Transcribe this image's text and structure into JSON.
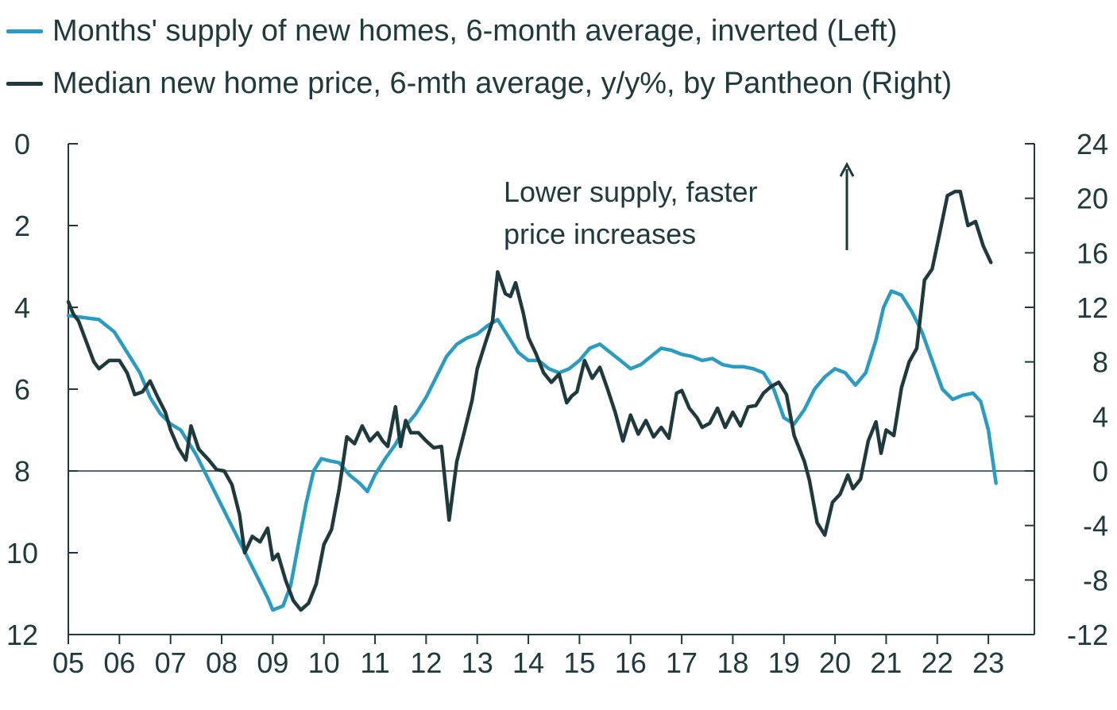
{
  "colors": {
    "supply": "#2b9cc1",
    "price": "#1f3a3d",
    "axis": "#1f3a3d"
  },
  "chart_data": {
    "type": "line",
    "title": "",
    "legend_position": "top-left",
    "annotation": {
      "lines": [
        "Lower supply, faster",
        "price increases"
      ],
      "arrow": "up"
    },
    "x_axis": {
      "ticks": [
        2005,
        2006,
        2007,
        2008,
        2009,
        2010,
        2011,
        2012,
        2013,
        2014,
        2015,
        2016,
        2017,
        2018,
        2019,
        2020,
        2021,
        2022,
        2023
      ],
      "tick_labels": [
        "05",
        "06",
        "07",
        "08",
        "09",
        "10",
        "11",
        "12",
        "13",
        "14",
        "15",
        "16",
        "17",
        "18",
        "19",
        "20",
        "21",
        "22",
        "23"
      ],
      "range": [
        2005,
        2023.9
      ]
    },
    "y_left": {
      "range": [
        0,
        12
      ],
      "inverted": true,
      "ticks": [
        0,
        2,
        4,
        6,
        8,
        10,
        12
      ],
      "tick_labels": [
        "0",
        "2",
        "4",
        "6",
        "8",
        "10",
        "12"
      ]
    },
    "y_right": {
      "range": [
        -12,
        24
      ],
      "ticks": [
        24,
        20,
        16,
        12,
        8,
        4,
        0,
        -4,
        -8,
        -12
      ],
      "tick_labels": [
        "24",
        "20",
        "16",
        "12",
        "8",
        "4",
        "0",
        "-4",
        "-8",
        "-12"
      ]
    },
    "reference_line": {
      "axis": "left",
      "value": 8
    },
    "series": [
      {
        "name": "Months' supply of new homes, 6-month average, inverted (Left)",
        "axis": "left",
        "points": [
          [
            2005.0,
            4.2
          ],
          [
            2005.3,
            4.25
          ],
          [
            2005.6,
            4.3
          ],
          [
            2005.9,
            4.6
          ],
          [
            2006.1,
            5.0
          ],
          [
            2006.4,
            5.6
          ],
          [
            2006.6,
            6.2
          ],
          [
            2006.8,
            6.6
          ],
          [
            2007.0,
            6.85
          ],
          [
            2007.2,
            7.0
          ],
          [
            2007.5,
            7.6
          ],
          [
            2007.7,
            8.1
          ],
          [
            2007.9,
            8.6
          ],
          [
            2008.1,
            9.1
          ],
          [
            2008.3,
            9.6
          ],
          [
            2008.5,
            10.1
          ],
          [
            2008.7,
            10.6
          ],
          [
            2008.9,
            11.1
          ],
          [
            2009.0,
            11.4
          ],
          [
            2009.2,
            11.3
          ],
          [
            2009.35,
            10.8
          ],
          [
            2009.5,
            9.8
          ],
          [
            2009.65,
            8.8
          ],
          [
            2009.8,
            8.0
          ],
          [
            2009.95,
            7.7
          ],
          [
            2010.1,
            7.75
          ],
          [
            2010.3,
            7.8
          ],
          [
            2010.5,
            8.1
          ],
          [
            2010.7,
            8.3
          ],
          [
            2010.85,
            8.5
          ],
          [
            2011.0,
            8.1
          ],
          [
            2011.2,
            7.7
          ],
          [
            2011.4,
            7.35
          ],
          [
            2011.6,
            6.9
          ],
          [
            2011.8,
            6.6
          ],
          [
            2012.0,
            6.2
          ],
          [
            2012.2,
            5.7
          ],
          [
            2012.4,
            5.2
          ],
          [
            2012.6,
            4.9
          ],
          [
            2012.8,
            4.75
          ],
          [
            2013.0,
            4.65
          ],
          [
            2013.2,
            4.45
          ],
          [
            2013.4,
            4.3
          ],
          [
            2013.6,
            4.7
          ],
          [
            2013.8,
            5.1
          ],
          [
            2014.0,
            5.3
          ],
          [
            2014.2,
            5.3
          ],
          [
            2014.4,
            5.5
          ],
          [
            2014.6,
            5.6
          ],
          [
            2014.8,
            5.5
          ],
          [
            2015.0,
            5.3
          ],
          [
            2015.2,
            5.0
          ],
          [
            2015.4,
            4.9
          ],
          [
            2015.6,
            5.1
          ],
          [
            2015.8,
            5.3
          ],
          [
            2016.0,
            5.5
          ],
          [
            2016.2,
            5.4
          ],
          [
            2016.4,
            5.2
          ],
          [
            2016.6,
            5.0
          ],
          [
            2016.8,
            5.05
          ],
          [
            2017.0,
            5.15
          ],
          [
            2017.2,
            5.2
          ],
          [
            2017.4,
            5.3
          ],
          [
            2017.6,
            5.25
          ],
          [
            2017.8,
            5.4
          ],
          [
            2018.0,
            5.45
          ],
          [
            2018.2,
            5.45
          ],
          [
            2018.4,
            5.5
          ],
          [
            2018.6,
            5.6
          ],
          [
            2018.8,
            6.0
          ],
          [
            2019.0,
            6.7
          ],
          [
            2019.2,
            6.85
          ],
          [
            2019.4,
            6.5
          ],
          [
            2019.6,
            6.0
          ],
          [
            2019.8,
            5.7
          ],
          [
            2020.0,
            5.5
          ],
          [
            2020.2,
            5.6
          ],
          [
            2020.4,
            5.9
          ],
          [
            2020.6,
            5.6
          ],
          [
            2020.8,
            4.8
          ],
          [
            2020.95,
            4.0
          ],
          [
            2021.1,
            3.6
          ],
          [
            2021.3,
            3.7
          ],
          [
            2021.5,
            4.1
          ],
          [
            2021.7,
            4.6
          ],
          [
            2021.9,
            5.3
          ],
          [
            2022.1,
            6.0
          ],
          [
            2022.3,
            6.25
          ],
          [
            2022.5,
            6.15
          ],
          [
            2022.7,
            6.1
          ],
          [
            2022.85,
            6.3
          ],
          [
            2023.0,
            7.0
          ],
          [
            2023.15,
            8.3
          ]
        ]
      },
      {
        "name": "Median new home price, 6-mth average, y/y%, by Pantheon (Right)",
        "axis": "right",
        "points": [
          [
            2005.0,
            12.4
          ],
          [
            2005.1,
            11.5
          ],
          [
            2005.2,
            11.0
          ],
          [
            2005.35,
            9.5
          ],
          [
            2005.5,
            8.0
          ],
          [
            2005.6,
            7.5
          ],
          [
            2005.8,
            8.1
          ],
          [
            2006.0,
            8.1
          ],
          [
            2006.15,
            7.2
          ],
          [
            2006.3,
            5.6
          ],
          [
            2006.45,
            5.8
          ],
          [
            2006.6,
            6.6
          ],
          [
            2006.75,
            5.4
          ],
          [
            2006.9,
            4.3
          ],
          [
            2007.0,
            3.0
          ],
          [
            2007.15,
            1.7
          ],
          [
            2007.3,
            0.8
          ],
          [
            2007.4,
            3.3
          ],
          [
            2007.55,
            1.6
          ],
          [
            2007.75,
            0.8
          ],
          [
            2007.9,
            0.1
          ],
          [
            2008.05,
            0.0
          ],
          [
            2008.2,
            -1.0
          ],
          [
            2008.35,
            -3.2
          ],
          [
            2008.45,
            -6.0
          ],
          [
            2008.6,
            -4.8
          ],
          [
            2008.75,
            -5.2
          ],
          [
            2008.9,
            -4.2
          ],
          [
            2009.0,
            -6.5
          ],
          [
            2009.1,
            -6.1
          ],
          [
            2009.25,
            -8.0
          ],
          [
            2009.4,
            -9.5
          ],
          [
            2009.55,
            -10.2
          ],
          [
            2009.7,
            -9.7
          ],
          [
            2009.85,
            -8.3
          ],
          [
            2010.0,
            -5.4
          ],
          [
            2010.15,
            -4.3
          ],
          [
            2010.3,
            -1.3
          ],
          [
            2010.45,
            2.5
          ],
          [
            2010.6,
            2.0
          ],
          [
            2010.75,
            3.3
          ],
          [
            2010.9,
            2.2
          ],
          [
            2011.05,
            2.8
          ],
          [
            2011.15,
            2.2
          ],
          [
            2011.25,
            1.8
          ],
          [
            2011.4,
            4.7
          ],
          [
            2011.5,
            1.8
          ],
          [
            2011.6,
            3.7
          ],
          [
            2011.7,
            2.8
          ],
          [
            2011.85,
            2.8
          ],
          [
            2012.0,
            2.2
          ],
          [
            2012.15,
            1.7
          ],
          [
            2012.3,
            1.8
          ],
          [
            2012.45,
            -3.6
          ],
          [
            2012.6,
            0.7
          ],
          [
            2012.75,
            2.9
          ],
          [
            2012.9,
            5.2
          ],
          [
            2013.0,
            7.5
          ],
          [
            2013.15,
            9.3
          ],
          [
            2013.3,
            11.0
          ],
          [
            2013.4,
            14.6
          ],
          [
            2013.55,
            13.0
          ],
          [
            2013.65,
            12.8
          ],
          [
            2013.75,
            13.8
          ],
          [
            2013.9,
            11.6
          ],
          [
            2014.0,
            9.8
          ],
          [
            2014.15,
            8.6
          ],
          [
            2014.3,
            7.2
          ],
          [
            2014.45,
            6.5
          ],
          [
            2014.6,
            7.1
          ],
          [
            2014.75,
            5.0
          ],
          [
            2014.85,
            5.5
          ],
          [
            2014.95,
            5.8
          ],
          [
            2015.1,
            8.1
          ],
          [
            2015.25,
            6.8
          ],
          [
            2015.4,
            7.6
          ],
          [
            2015.55,
            6.0
          ],
          [
            2015.7,
            4.3
          ],
          [
            2015.85,
            2.2
          ],
          [
            2016.0,
            4.1
          ],
          [
            2016.15,
            2.7
          ],
          [
            2016.3,
            3.7
          ],
          [
            2016.45,
            2.5
          ],
          [
            2016.6,
            3.2
          ],
          [
            2016.75,
            2.4
          ],
          [
            2016.9,
            5.7
          ],
          [
            2017.0,
            5.9
          ],
          [
            2017.15,
            4.6
          ],
          [
            2017.3,
            3.9
          ],
          [
            2017.4,
            3.2
          ],
          [
            2017.55,
            3.5
          ],
          [
            2017.7,
            4.6
          ],
          [
            2017.85,
            3.2
          ],
          [
            2018.0,
            4.3
          ],
          [
            2018.15,
            3.3
          ],
          [
            2018.3,
            4.7
          ],
          [
            2018.45,
            4.8
          ],
          [
            2018.6,
            5.7
          ],
          [
            2018.75,
            6.2
          ],
          [
            2018.9,
            6.5
          ],
          [
            2019.05,
            5.6
          ],
          [
            2019.2,
            2.6
          ],
          [
            2019.4,
            0.7
          ],
          [
            2019.5,
            -0.7
          ],
          [
            2019.65,
            -3.8
          ],
          [
            2019.8,
            -4.7
          ],
          [
            2019.95,
            -2.3
          ],
          [
            2020.1,
            -1.7
          ],
          [
            2020.25,
            -0.3
          ],
          [
            2020.35,
            -1.3
          ],
          [
            2020.5,
            -0.6
          ],
          [
            2020.65,
            2.2
          ],
          [
            2020.8,
            3.6
          ],
          [
            2020.9,
            1.3
          ],
          [
            2021.0,
            3.0
          ],
          [
            2021.15,
            2.6
          ],
          [
            2021.3,
            6.1
          ],
          [
            2021.45,
            8.0
          ],
          [
            2021.6,
            9.0
          ],
          [
            2021.75,
            14.0
          ],
          [
            2021.9,
            14.8
          ],
          [
            2022.05,
            17.5
          ],
          [
            2022.2,
            20.2
          ],
          [
            2022.35,
            20.5
          ],
          [
            2022.45,
            20.5
          ],
          [
            2022.6,
            18.0
          ],
          [
            2022.75,
            18.3
          ],
          [
            2022.9,
            16.5
          ],
          [
            2023.05,
            15.3
          ]
        ]
      }
    ]
  }
}
